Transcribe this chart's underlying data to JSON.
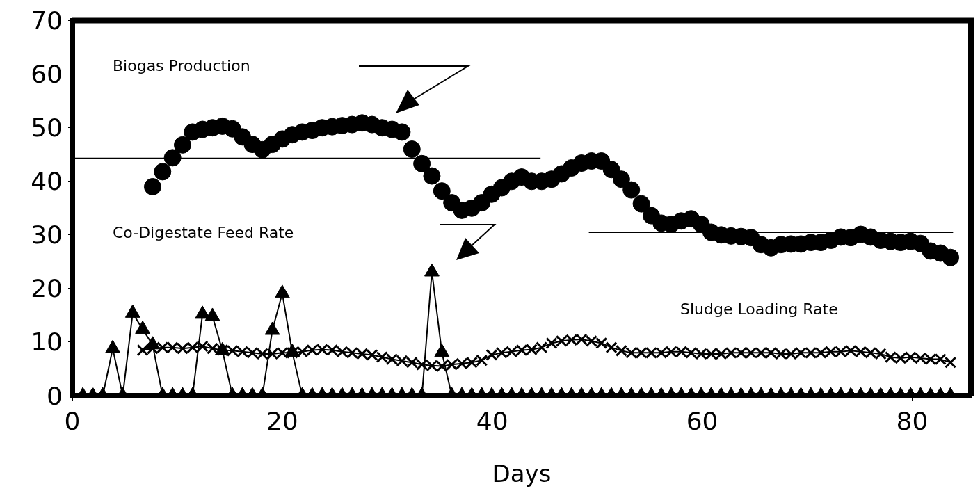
{
  "chart_data": {
    "type": "line",
    "xlabel": "Days",
    "annotations": [
      "Biogas Production",
      "Co-Digestate Feed Rate",
      "Sludge Loading Rate"
    ],
    "xlim": [
      0,
      85.6
    ],
    "xticks": [
      0,
      20,
      40,
      60,
      80
    ],
    "ylim": [
      0,
      70
    ],
    "yticks": [
      0,
      10,
      20,
      30,
      40,
      50,
      60,
      70
    ],
    "grid": false,
    "legend": false,
    "x": [
      1,
      1.95,
      2.9,
      3.85,
      4.8,
      5.75,
      6.7,
      7.65,
      8.6,
      9.55,
      10.5,
      11.45,
      12.4,
      13.35,
      14.3,
      15.25,
      16.2,
      17.15,
      18.1,
      19.05,
      20,
      20.95,
      21.9,
      22.85,
      23.8,
      24.75,
      25.7,
      26.65,
      27.6,
      28.55,
      29.5,
      30.45,
      31.4,
      32.35,
      33.3,
      34.25,
      35.2,
      36.15,
      37.1,
      38.05,
      39,
      39.95,
      40.9,
      41.85,
      42.8,
      43.75,
      44.7,
      45.65,
      46.6,
      47.55,
      48.5,
      49.45,
      50.4,
      51.35,
      52.3,
      53.25,
      54.2,
      55.15,
      56.1,
      57.05,
      58,
      58.95,
      59.9,
      60.85,
      61.8,
      62.75,
      63.7,
      64.65,
      65.6,
      66.55,
      67.5,
      68.45,
      69.4,
      70.35,
      71.3,
      72.25,
      73.2,
      74.15,
      75.1,
      76.05,
      77,
      77.95,
      78.9,
      79.85,
      80.8,
      81.75,
      82.7,
      83.65
    ],
    "series": [
      {
        "type": "scatter",
        "color": "#000000",
        "marker": "circle",
        "values": [
          null,
          null,
          null,
          null,
          null,
          null,
          null,
          39.0,
          41.8,
          44.4,
          46.8,
          49.2,
          49.7,
          50.0,
          50.3,
          49.8,
          48.3,
          46.9,
          45.9,
          46.9,
          47.9,
          48.7,
          49.2,
          49.5,
          50.0,
          50.2,
          50.4,
          50.6,
          50.9,
          50.6,
          50.0,
          49.7,
          49.2,
          46.0,
          43.3,
          41.0,
          38.2,
          36.0,
          34.6,
          35.0,
          36.0,
          37.6,
          38.8,
          40.0,
          40.8,
          40.0,
          40.0,
          40.4,
          41.4,
          42.5,
          43.4,
          43.8,
          43.8,
          42.2,
          40.4,
          38.4,
          35.8,
          33.6,
          32.2,
          32.0,
          32.6,
          33.0,
          32.0,
          30.5,
          30.0,
          29.8,
          29.7,
          29.5,
          28.2,
          27.6,
          28.2,
          28.3,
          28.3,
          28.6,
          28.6,
          29.0,
          29.6,
          29.5,
          30.1,
          29.6,
          29.0,
          28.8,
          28.6,
          28.8,
          28.4,
          27.0,
          26.6,
          25.8
        ]
      },
      {
        "color": "#000000",
        "marker": "triangle",
        "values": [
          0,
          0,
          0,
          8.8,
          0,
          15.4,
          12.4,
          9.5,
          0,
          0,
          0,
          0,
          15.2,
          14.8,
          8.4,
          0,
          0,
          0,
          0,
          12.2,
          19.1,
          8.1,
          0,
          0,
          0,
          0,
          0,
          0,
          0,
          0,
          0,
          0,
          0,
          0,
          0,
          23.1,
          8.1,
          0,
          0,
          0,
          0,
          0,
          0,
          0,
          0,
          0,
          0,
          0,
          0,
          0,
          0,
          0,
          0,
          0,
          0,
          0,
          0,
          0,
          0,
          0,
          0,
          0,
          0,
          0,
          0,
          0,
          0,
          0,
          0,
          0,
          0,
          0,
          0,
          0,
          0,
          0,
          0,
          0,
          0,
          0,
          0,
          0,
          0,
          0,
          0,
          0,
          0,
          0
        ]
      },
      {
        "color": "#000000",
        "marker": "cross",
        "values": [
          null,
          null,
          null,
          null,
          null,
          null,
          8.5,
          8.8,
          9.0,
          9.0,
          8.8,
          9.0,
          9.2,
          8.8,
          8.5,
          8.4,
          8.2,
          8.0,
          7.8,
          7.8,
          8.0,
          8.0,
          8.2,
          8.5,
          8.6,
          8.5,
          8.2,
          8.0,
          7.8,
          7.6,
          7.2,
          6.8,
          6.5,
          6.2,
          5.8,
          5.6,
          5.5,
          5.8,
          6.0,
          6.2,
          6.6,
          7.6,
          8.0,
          8.2,
          8.5,
          8.6,
          9.0,
          9.8,
          10.2,
          10.4,
          10.5,
          10.2,
          9.8,
          9.0,
          8.4,
          8.0,
          8.0,
          8.0,
          8.0,
          8.2,
          8.2,
          8.0,
          7.8,
          7.8,
          7.8,
          8.0,
          8.0,
          8.0,
          8.0,
          8.0,
          7.8,
          7.8,
          8.0,
          8.0,
          8.0,
          8.2,
          8.2,
          8.4,
          8.2,
          8.0,
          7.8,
          7.2,
          7.0,
          7.2,
          7.0,
          6.8,
          6.8,
          6.2
        ]
      },
      {
        "color": "#000000",
        "marker": "none",
        "x": [
          0,
          44.6
        ],
        "values": [
          44.3,
          44.3
        ]
      },
      {
        "color": "#000000",
        "marker": "none",
        "x": [
          49.2,
          83.9
        ],
        "values": [
          30.5,
          30.5
        ]
      }
    ]
  }
}
